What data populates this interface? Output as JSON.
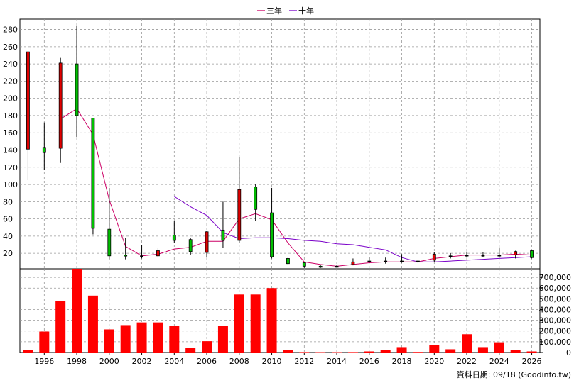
{
  "legend": {
    "items": [
      {
        "label": "三年",
        "color": "#cc0066"
      },
      {
        "label": "十年",
        "color": "#7a00c8"
      }
    ]
  },
  "footer": {
    "text": "資料日期: 09/18  (Goodinfo.tw)"
  },
  "chart_data": [
    {
      "type": "candlestick",
      "x_ticks": [
        "1996",
        "1998",
        "2000",
        "2002",
        "2004",
        "2006",
        "2008",
        "2010",
        "2012",
        "2014",
        "2016",
        "2018",
        "2020",
        "2022",
        "2024",
        "2026"
      ],
      "y_ticks": [
        20,
        40,
        60,
        80,
        100,
        120,
        140,
        160,
        180,
        200,
        220,
        240,
        260,
        280
      ],
      "ylim": [
        2,
        292
      ],
      "xlim": [
        1994.5,
        2026.5
      ],
      "grid": true,
      "candles": [
        {
          "x": 1995,
          "open": 141,
          "close": 254,
          "high": 254,
          "low": 105
        },
        {
          "x": 1996,
          "open": 143,
          "close": 137,
          "high": 172,
          "low": 117
        },
        {
          "x": 1997,
          "open": 142,
          "close": 241,
          "high": 247,
          "low": 125
        },
        {
          "x": 1998,
          "open": 240,
          "close": 180,
          "high": 284,
          "low": 155
        },
        {
          "x": 1999,
          "open": 177,
          "close": 49,
          "high": 177,
          "low": 42
        },
        {
          "x": 2000,
          "open": 48,
          "close": 17,
          "high": 96,
          "low": 13
        },
        {
          "x": 2001,
          "open": 18,
          "close": 17,
          "high": 38,
          "low": 13
        },
        {
          "x": 2002,
          "open": 17,
          "close": 17,
          "high": 30,
          "low": 14
        },
        {
          "x": 2003,
          "open": 17,
          "close": 23,
          "high": 26,
          "low": 15
        },
        {
          "x": 2004,
          "open": 41,
          "close": 35,
          "high": 58,
          "low": 32
        },
        {
          "x": 2005,
          "open": 36,
          "close": 22,
          "high": 38,
          "low": 18
        },
        {
          "x": 2006,
          "open": 21,
          "close": 45,
          "high": 46,
          "low": 16
        },
        {
          "x": 2007,
          "open": 47,
          "close": 35,
          "high": 80,
          "low": 26
        },
        {
          "x": 2008,
          "open": 35,
          "close": 94,
          "high": 132,
          "low": 32
        },
        {
          "x": 2009,
          "open": 97,
          "close": 71,
          "high": 100,
          "low": 58
        },
        {
          "x": 2010,
          "open": 67,
          "close": 16,
          "high": 96,
          "low": 14
        },
        {
          "x": 2011,
          "open": 14,
          "close": 8,
          "high": 16,
          "low": 7
        },
        {
          "x": 2012,
          "open": 9,
          "close": 5,
          "high": 10,
          "low": 3
        },
        {
          "x": 2013,
          "open": 5,
          "close": 4,
          "high": 6,
          "low": 3
        },
        {
          "x": 2014,
          "open": 5,
          "close": 5,
          "high": 6,
          "low": 4
        },
        {
          "x": 2015,
          "open": 7,
          "close": 10,
          "high": 14,
          "low": 6
        },
        {
          "x": 2016,
          "open": 11,
          "close": 11,
          "high": 16,
          "low": 9
        },
        {
          "x": 2017,
          "open": 11,
          "close": 11,
          "high": 15,
          "low": 8
        },
        {
          "x": 2018,
          "open": 11,
          "close": 11,
          "high": 19,
          "low": 9
        },
        {
          "x": 2019,
          "open": 11,
          "close": 11,
          "high": 12,
          "low": 9
        },
        {
          "x": 2020,
          "open": 12,
          "close": 19,
          "high": 21,
          "low": 10
        },
        {
          "x": 2021,
          "open": 17,
          "close": 17,
          "high": 20,
          "low": 14
        },
        {
          "x": 2022,
          "open": 18,
          "close": 18,
          "high": 22,
          "low": 16
        },
        {
          "x": 2023,
          "open": 18,
          "close": 18,
          "high": 21,
          "low": 16
        },
        {
          "x": 2024,
          "open": 18,
          "close": 18,
          "high": 27,
          "low": 15
        },
        {
          "x": 2025,
          "open": 18,
          "close": 22,
          "high": 23,
          "low": 14
        },
        {
          "x": 2026,
          "open": 23,
          "close": 15,
          "high": 24,
          "low": 14
        }
      ],
      "series": [
        {
          "name": "三年",
          "color": "#cc0066",
          "points": [
            [
              1997,
              176
            ],
            [
              1998,
              188
            ],
            [
              1999,
              158
            ],
            [
              2000,
              82
            ],
            [
              2001,
              28
            ],
            [
              2002,
              17
            ],
            [
              2003,
              19
            ],
            [
              2004,
              25
            ],
            [
              2005,
              27
            ],
            [
              2006,
              34
            ],
            [
              2007,
              34
            ],
            [
              2008,
              60
            ],
            [
              2009,
              66
            ],
            [
              2010,
              59
            ],
            [
              2011,
              32
            ],
            [
              2012,
              10
            ],
            [
              2013,
              7
            ],
            [
              2014,
              5
            ],
            [
              2015,
              7
            ],
            [
              2016,
              9
            ],
            [
              2017,
              10
            ],
            [
              2018,
              10
            ],
            [
              2019,
              10
            ],
            [
              2020,
              14
            ],
            [
              2021,
              16
            ],
            [
              2022,
              18
            ],
            [
              2023,
              18
            ],
            [
              2024,
              18
            ],
            [
              2025,
              19
            ],
            [
              2026,
              18
            ]
          ]
        },
        {
          "name": "十年",
          "color": "#7a00c8",
          "points": [
            [
              2004,
              86
            ],
            [
              2005,
              74
            ],
            [
              2006,
              64
            ],
            [
              2007,
              44
            ],
            [
              2008,
              37
            ],
            [
              2009,
              38
            ],
            [
              2010,
              38
            ],
            [
              2011,
              37
            ],
            [
              2012,
              35
            ],
            [
              2013,
              34
            ],
            [
              2014,
              31
            ],
            [
              2015,
              30
            ],
            [
              2016,
              27
            ],
            [
              2017,
              24
            ],
            [
              2018,
              15
            ],
            [
              2019,
              10
            ],
            [
              2020,
              10
            ],
            [
              2021,
              11
            ],
            [
              2022,
              12
            ],
            [
              2023,
              13
            ],
            [
              2024,
              14
            ],
            [
              2025,
              15
            ],
            [
              2026,
              16
            ]
          ]
        }
      ]
    },
    {
      "type": "bar",
      "y_ticks": [
        0,
        100000,
        200000,
        300000,
        400000,
        500000,
        600000,
        700000
      ],
      "y_tick_labels": [
        "0",
        "100,000",
        "200,000",
        "300,000",
        "400,000",
        "500,000",
        "600,000",
        "700,000"
      ],
      "ylim": [
        0,
        780000
      ],
      "color": "#ff0000",
      "bars": [
        {
          "x": 1995,
          "value": 25000
        },
        {
          "x": 1996,
          "value": 195000
        },
        {
          "x": 1997,
          "value": 480000
        },
        {
          "x": 1998,
          "value": 790000
        },
        {
          "x": 1999,
          "value": 530000
        },
        {
          "x": 2000,
          "value": 215000
        },
        {
          "x": 2001,
          "value": 255000
        },
        {
          "x": 2002,
          "value": 280000
        },
        {
          "x": 2003,
          "value": 280000
        },
        {
          "x": 2004,
          "value": 245000
        },
        {
          "x": 2005,
          "value": 40000
        },
        {
          "x": 2006,
          "value": 105000
        },
        {
          "x": 2007,
          "value": 245000
        },
        {
          "x": 2008,
          "value": 540000
        },
        {
          "x": 2009,
          "value": 540000
        },
        {
          "x": 2010,
          "value": 600000
        },
        {
          "x": 2011,
          "value": 22000
        },
        {
          "x": 2012,
          "value": 4000
        },
        {
          "x": 2013,
          "value": 3000
        },
        {
          "x": 2014,
          "value": 3000
        },
        {
          "x": 2015,
          "value": 4000
        },
        {
          "x": 2016,
          "value": 10000
        },
        {
          "x": 2017,
          "value": 25000
        },
        {
          "x": 2018,
          "value": 50000
        },
        {
          "x": 2019,
          "value": 5000
        },
        {
          "x": 2020,
          "value": 70000
        },
        {
          "x": 2021,
          "value": 30000
        },
        {
          "x": 2022,
          "value": 170000
        },
        {
          "x": 2023,
          "value": 50000
        },
        {
          "x": 2024,
          "value": 95000
        },
        {
          "x": 2025,
          "value": 25000
        },
        {
          "x": 2026,
          "value": 10000
        }
      ]
    }
  ]
}
